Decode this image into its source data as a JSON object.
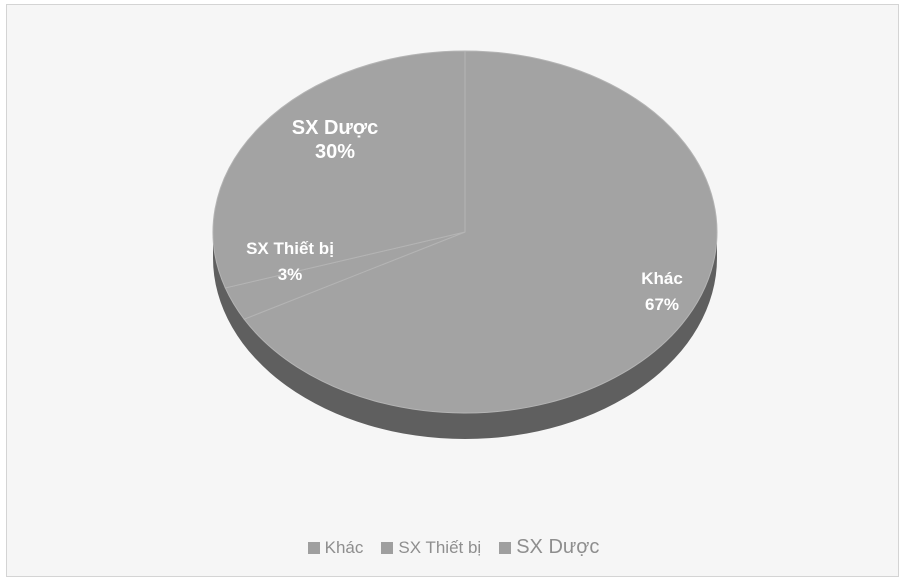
{
  "chart_data": {
    "type": "pie",
    "title": "",
    "series": [
      {
        "categories": [
          "Khác",
          "SX Thiết bị",
          "SX Dược"
        ],
        "values": [
          67,
          3,
          30
        ],
        "labels": [
          "67%",
          "3%",
          "30%"
        ]
      }
    ],
    "legend": {
      "position": "bottom",
      "entries": [
        "Khác",
        "SX Thiết bị",
        "SX Dược"
      ]
    },
    "colors": {
      "slice_top": "#a3a3a3",
      "slice_side": "#5f5f5f",
      "label_text": "#ffffff",
      "legend_swatch": "#9f9f9f",
      "legend_text": "#8e8e8e"
    }
  }
}
